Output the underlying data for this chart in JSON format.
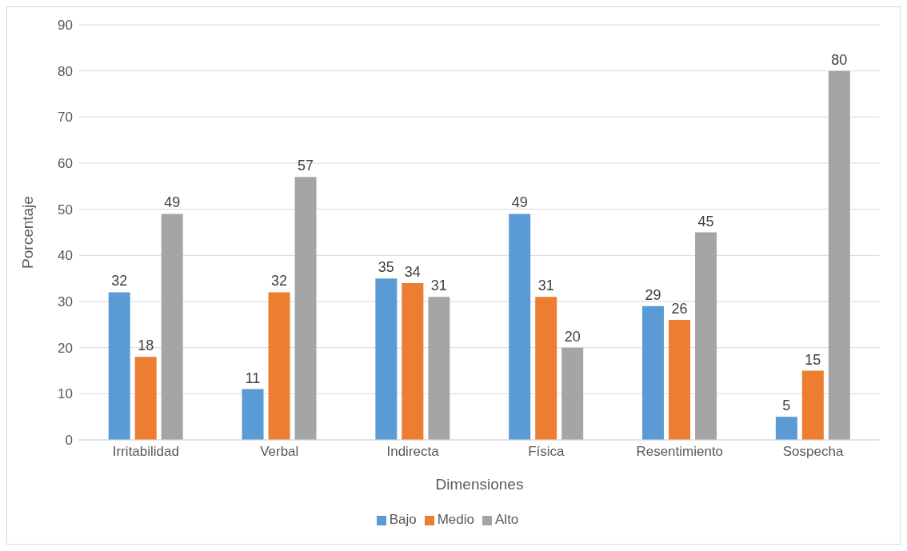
{
  "chart_data": {
    "type": "bar",
    "xlabel": "Dimensiones",
    "ylabel": "Porcentaje",
    "categories": [
      "Irritabilidad",
      "Verbal",
      "Indirecta",
      "Física",
      "Resentimiento",
      "Sospecha"
    ],
    "series": [
      {
        "name": "Bajo",
        "color": "#5b9bd5",
        "values": [
          32,
          11,
          35,
          49,
          29,
          5
        ]
      },
      {
        "name": "Medio",
        "color": "#ed7d31",
        "values": [
          18,
          32,
          34,
          31,
          26,
          15
        ]
      },
      {
        "name": "Alto",
        "color": "#a5a5a5",
        "values": [
          49,
          57,
          31,
          20,
          45,
          80
        ]
      }
    ],
    "ylim": [
      0,
      90
    ],
    "yticks": [
      0,
      10,
      20,
      30,
      40,
      50,
      60,
      70,
      80,
      90
    ],
    "grid": "y",
    "legend": "bottom",
    "data_labels": true
  }
}
